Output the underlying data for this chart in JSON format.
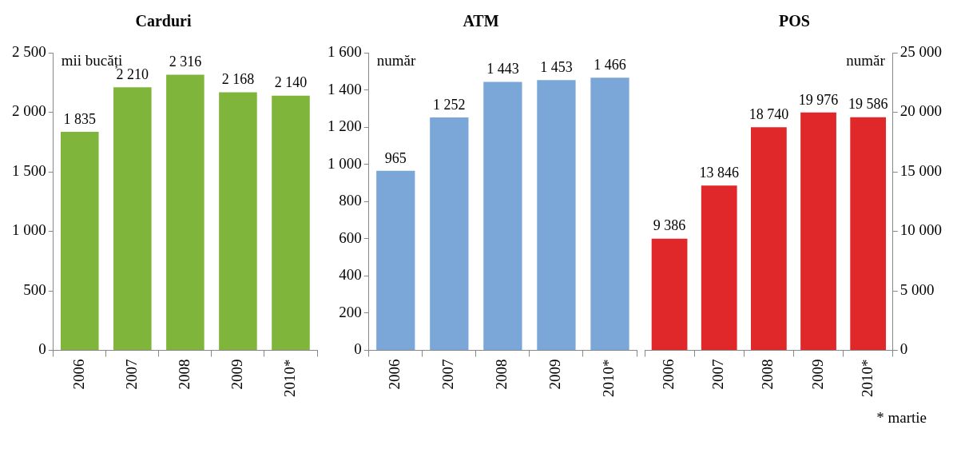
{
  "chart_data": [
    {
      "type": "bar",
      "title": "Carduri",
      "ylabel": "mii bucăți",
      "categories": [
        "2006",
        "2007",
        "2008",
        "2009",
        "2010*"
      ],
      "series": [
        {
          "color": "#7fb53a",
          "values": [
            1835,
            2210,
            2316,
            2168,
            2140
          ],
          "value_labels": [
            "1 835",
            "2 210",
            "2 316",
            "2 168",
            "2 140"
          ]
        }
      ],
      "ylim": [
        0,
        2500
      ],
      "yticks": [
        0,
        500,
        {
          "value": 1000,
          "label": "1 000"
        },
        {
          "value": 1500,
          "label": "1 500"
        },
        {
          "value": 2000,
          "label": "2 000"
        },
        {
          "value": 2500,
          "label": "2 500"
        }
      ],
      "grid": false,
      "legend": false
    },
    {
      "type": "bar",
      "title": "ATM",
      "ylabel": "număr",
      "categories": [
        "2006",
        "2007",
        "2008",
        "2009",
        "2010*"
      ],
      "series": [
        {
          "color": "#7aa7d8",
          "values": [
            965,
            1252,
            1443,
            1453,
            1466
          ],
          "value_labels": [
            "965",
            "1 252",
            "1 443",
            "1 453",
            "1 466"
          ]
        }
      ],
      "ylim": [
        0,
        1600
      ],
      "yticks": [
        0,
        200,
        400,
        600,
        800,
        {
          "value": 1000,
          "label": "1 000"
        },
        {
          "value": 1200,
          "label": "1 200"
        },
        {
          "value": 1400,
          "label": "1 400"
        },
        {
          "value": 1600,
          "label": "1 600"
        }
      ],
      "grid": false,
      "legend": false
    },
    {
      "type": "bar",
      "title": "POS",
      "y2label": "număr",
      "categories": [
        "2006",
        "2007",
        "2008",
        "2009",
        "2010*"
      ],
      "series": [
        {
          "color": "#e0282a",
          "axis": "y2",
          "values": [
            9386,
            13846,
            18740,
            19976,
            19586
          ],
          "value_labels": [
            "9 386",
            "13 846",
            "18 740",
            "19 976",
            "19 586"
          ]
        }
      ],
      "y2lim": [
        0,
        25000
      ],
      "y2ticks": [
        0,
        {
          "value": 5000,
          "label": "5 000"
        },
        {
          "value": 10000,
          "label": "10 000"
        },
        {
          "value": 15000,
          "label": "15 000"
        },
        {
          "value": 20000,
          "label": "20 000"
        },
        {
          "value": 25000,
          "label": "25 000"
        }
      ],
      "grid": false,
      "legend": false,
      "annotations": [
        "* martie"
      ]
    }
  ]
}
